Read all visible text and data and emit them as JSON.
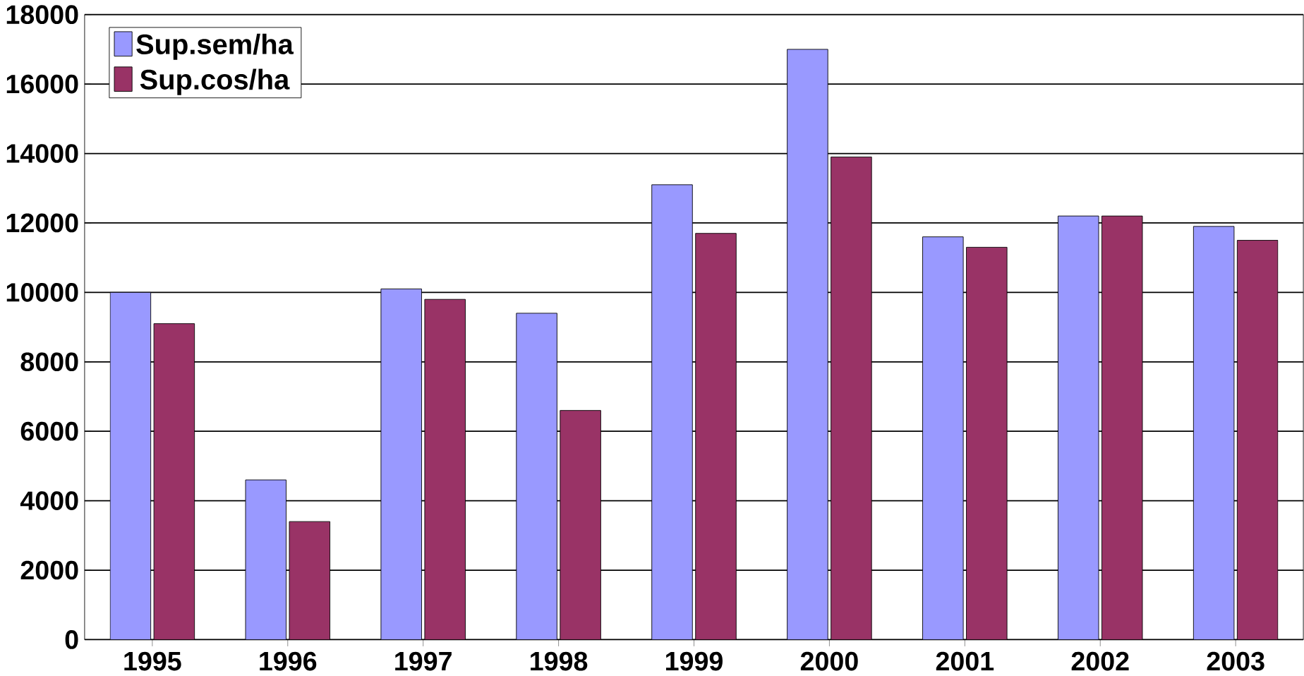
{
  "chart_data": {
    "type": "bar",
    "categories": [
      "1995",
      "1996",
      "1997",
      "1998",
      "1999",
      "2000",
      "2001",
      "2002",
      "2003"
    ],
    "series": [
      {
        "name": "Sup.sem/ha",
        "color": "#9999ff",
        "values": [
          10000,
          4600,
          10100,
          9400,
          13100,
          17000,
          11600,
          12200,
          11900
        ]
      },
      {
        "name": "Sup.cos/ha",
        "color": "#993366",
        "values": [
          9100,
          3400,
          9800,
          6600,
          11700,
          13900,
          11300,
          12200,
          11500
        ]
      }
    ],
    "ylim": [
      0,
      18000
    ],
    "yticks": [
      0,
      2000,
      4000,
      6000,
      8000,
      10000,
      12000,
      14000,
      16000,
      18000
    ],
    "grid": "y",
    "legend": "top left"
  }
}
